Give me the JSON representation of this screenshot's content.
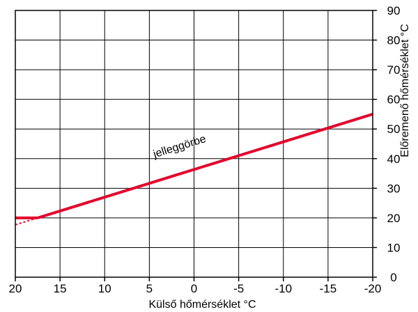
{
  "chart_data": {
    "type": "line",
    "xlabel": "Külső hőmérséklet °C",
    "ylabel": "Előremenő hőmérséklet °C",
    "xlim": [
      20,
      -20
    ],
    "ylim": [
      0,
      90
    ],
    "x_ticks": [
      20,
      15,
      10,
      5,
      0,
      -5,
      -10,
      -15,
      -20
    ],
    "x_tick_labels": [
      "20",
      "15",
      "10",
      "5",
      "0",
      "-5",
      "-10",
      "-15",
      "-20"
    ],
    "y_ticks": [
      0,
      10,
      20,
      30,
      40,
      50,
      60,
      70,
      80,
      90
    ],
    "y_tick_labels": [
      "0",
      "10",
      "20",
      "30",
      "40",
      "50",
      "60",
      "70",
      "80",
      "90"
    ],
    "y_axis_position": "right",
    "grid": true,
    "series": [
      {
        "name": "jelleggörbe",
        "x": [
          17.5,
          -20
        ],
        "y": [
          20,
          55
        ],
        "color": "#e4002b",
        "style": "solid"
      },
      {
        "x": [
          20,
          17.5
        ],
        "y": [
          20,
          20
        ],
        "color": "#e4002b",
        "style": "solid"
      },
      {
        "x": [
          20,
          17.5
        ],
        "y": [
          17.7,
          20
        ],
        "color": "#e4002b",
        "style": "dashed"
      }
    ],
    "annotations": [
      {
        "text": "jelleggörbe",
        "x": 1.5,
        "y": 43
      }
    ]
  }
}
